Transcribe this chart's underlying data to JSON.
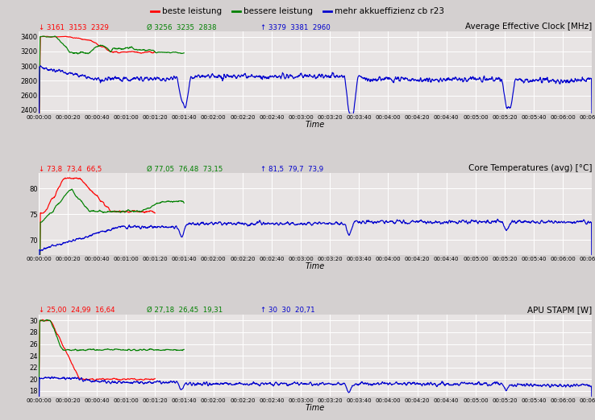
{
  "legend_labels": [
    "beste leistung",
    "bessere leistung",
    "mehr akkueffizienz cb r23"
  ],
  "legend_colors": [
    "#ff0000",
    "#008000",
    "#0000cd"
  ],
  "subplot1_title": "Average Effective Clock [MHz]",
  "subplot1_ylim": [
    2350,
    3470
  ],
  "subplot1_yticks": [
    2400,
    2600,
    2800,
    3000,
    3200,
    3400
  ],
  "subplot1_stats": [
    {
      "symbol": "↓",
      "values": "3161  3153  2329",
      "color": "#ff0000"
    },
    {
      "symbol": "Ø",
      "values": "3256  3235  2838",
      "color": "#008000"
    },
    {
      "symbol": "↑",
      "values": "3379  3381  2960",
      "color": "#0000cd"
    }
  ],
  "subplot2_title": "Core Temperatures (avg) [°C]",
  "subplot2_ylim": [
    67,
    83
  ],
  "subplot2_yticks": [
    70,
    75,
    80
  ],
  "subplot2_stats": [
    {
      "symbol": "↓",
      "values": "73,8  73,4  66,5",
      "color": "#ff0000"
    },
    {
      "symbol": "Ø",
      "values": "77,05  76,48  73,15",
      "color": "#008000"
    },
    {
      "symbol": "↑",
      "values": "81,5  79,7  73,9",
      "color": "#0000cd"
    }
  ],
  "subplot3_title": "APU STAPM [W]",
  "subplot3_ylim": [
    17,
    31
  ],
  "subplot3_yticks": [
    18,
    20,
    22,
    24,
    26,
    28,
    30
  ],
  "subplot3_stats": [
    {
      "symbol": "↓",
      "values": "25,00  24,99  16,64",
      "color": "#ff0000"
    },
    {
      "symbol": "Ø",
      "values": "27,18  26,45  19,31",
      "color": "#008000"
    },
    {
      "symbol": "↑",
      "values": "30  30  20,71",
      "color": "#0000cd"
    }
  ],
  "time_total_seconds": 380,
  "xlabel": "Time",
  "bg_color": "#d4d0d0",
  "plot_bg_color": "#e8e4e4",
  "grid_color": "#ffffff"
}
